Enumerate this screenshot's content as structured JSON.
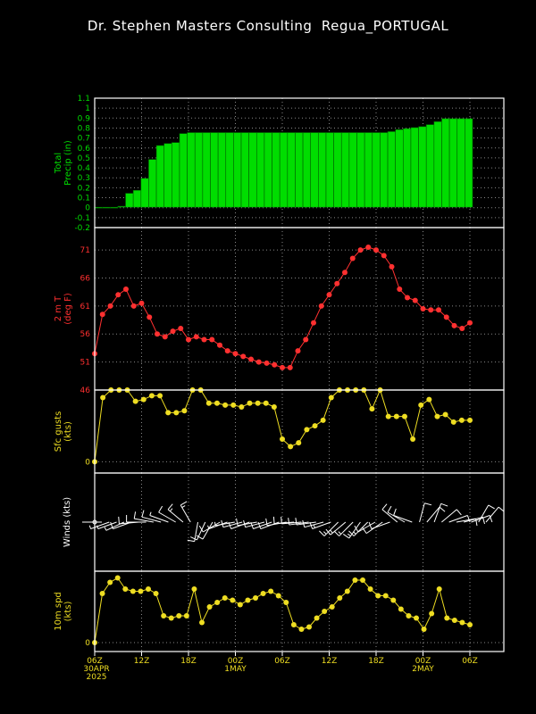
{
  "title": "Dr. Stephen Masters Consulting  Regua_PORTUGAL",
  "colors": {
    "precip": "#00dd00",
    "temp": "#ff3030",
    "gust": "#eedd22",
    "wind": "#ffffff",
    "spd": "#eedd22",
    "axis": "#ffffff"
  },
  "x_axis": {
    "tick_labels": [
      "06Z",
      "12Z",
      "18Z",
      "00Z",
      "06Z",
      "12Z",
      "18Z",
      "00Z",
      "06Z"
    ],
    "date_labels": [
      {
        "tick": 0,
        "lines": [
          "30APR",
          "2025"
        ]
      },
      {
        "tick": 3,
        "lines": [
          "1MAY"
        ]
      },
      {
        "tick": 7,
        "lines": [
          "2MAY"
        ]
      }
    ]
  },
  "chart_data": [
    {
      "type": "bar",
      "ylabel": [
        "Total",
        "Precip (in)"
      ],
      "ylim": [
        -0.2,
        1.1
      ],
      "yticks": [
        "1.1",
        "1",
        "0.9",
        "0.8",
        "0.7",
        "0.6",
        "0.5",
        "0.4",
        "0.3",
        "0.2",
        "0.1",
        "0",
        "-0.1",
        "-0.2"
      ],
      "values": [
        0,
        0,
        0,
        0.01,
        0.14,
        0.17,
        0.29,
        0.48,
        0.62,
        0.64,
        0.65,
        0.74,
        0.75,
        0.75,
        0.75,
        0.75,
        0.75,
        0.75,
        0.75,
        0.75,
        0.75,
        0.75,
        0.75,
        0.75,
        0.75,
        0.75,
        0.75,
        0.75,
        0.75,
        0.75,
        0.75,
        0.75,
        0.75,
        0.75,
        0.75,
        0.75,
        0.75,
        0.75,
        0.76,
        0.78,
        0.79,
        0.8,
        0.81,
        0.83,
        0.86,
        0.89,
        0.89,
        0.89,
        0.89
      ]
    },
    {
      "type": "line",
      "ylabel": [
        "2 m T",
        "(deg F)"
      ],
      "ylim": [
        46,
        75
      ],
      "yticks": [
        "71",
        "66",
        "61",
        "56",
        "51",
        "46"
      ],
      "values": [
        52.5,
        59.5,
        61,
        63,
        64,
        61,
        61.5,
        59,
        56,
        55.5,
        56.5,
        57,
        55,
        55.5,
        55,
        55,
        54,
        53,
        52.5,
        52,
        51.5,
        51,
        50.8,
        50.5,
        50,
        50,
        53,
        55,
        58,
        61,
        63,
        65,
        67,
        69.5,
        71,
        71.5,
        71,
        70,
        68,
        64,
        62.5,
        62,
        60.5,
        60.3,
        60.3,
        59,
        57.5,
        57,
        58
      ]
    },
    {
      "type": "line",
      "ylabel": [
        "Sfc gusts",
        "(kts)"
      ],
      "ylim": [
        -3,
        19
      ],
      "yticks": [
        "0"
      ],
      "values": [
        0,
        17,
        19,
        19,
        19,
        16,
        16.5,
        17.5,
        17.5,
        13,
        13,
        13.5,
        19,
        19,
        15.5,
        15.5,
        15,
        15,
        14.5,
        15.5,
        15.5,
        15.5,
        14.5,
        6,
        4,
        5,
        8.5,
        9.5,
        11,
        17,
        19,
        19,
        19,
        19,
        14,
        19,
        12,
        12,
        12,
        6,
        15,
        16.5,
        12,
        12.5,
        10.5,
        11,
        11
      ]
    },
    {
      "type": "barbs",
      "ylabel": [
        "Winds (kts)"
      ],
      "barbs": [
        {
          "dir": 270,
          "spd": 2
        },
        {
          "dir": 250,
          "spd": 5
        },
        {
          "dir": 250,
          "spd": 5
        },
        {
          "dir": 245,
          "spd": 7
        },
        {
          "dir": 250,
          "spd": 10
        },
        {
          "dir": 265,
          "spd": 10
        },
        {
          "dir": 270,
          "spd": 10
        },
        {
          "dir": 280,
          "spd": 10
        },
        {
          "dir": 285,
          "spd": 10
        },
        {
          "dir": 290,
          "spd": 8
        },
        {
          "dir": 300,
          "spd": 10
        },
        {
          "dir": 310,
          "spd": 15
        },
        {
          "dir": 330,
          "spd": 15
        },
        {
          "dir": 190,
          "spd": 10
        },
        {
          "dir": 205,
          "spd": 10
        },
        {
          "dir": 210,
          "spd": 10
        },
        {
          "dir": 240,
          "spd": 10
        },
        {
          "dir": 250,
          "spd": 8
        },
        {
          "dir": 260,
          "spd": 8
        },
        {
          "dir": 255,
          "spd": 10
        },
        {
          "dir": 250,
          "spd": 10
        },
        {
          "dir": 260,
          "spd": 10
        },
        {
          "dir": 255,
          "spd": 10
        },
        {
          "dir": 250,
          "spd": 10
        },
        {
          "dir": 250,
          "spd": 10
        },
        {
          "dir": 260,
          "spd": 10
        },
        {
          "dir": 265,
          "spd": 10
        },
        {
          "dir": 265,
          "spd": 10
        },
        {
          "dir": 262,
          "spd": 10
        },
        {
          "dir": 262,
          "spd": 10
        },
        {
          "dir": 255,
          "spd": 10
        },
        {
          "dir": 250,
          "spd": 15
        },
        {
          "dir": 225,
          "spd": 15
        },
        {
          "dir": 230,
          "spd": 15
        },
        {
          "dir": 225,
          "spd": 15
        },
        {
          "dir": 215,
          "spd": 15
        },
        {
          "dir": 225,
          "spd": 15
        },
        {
          "dir": 240,
          "spd": 10
        },
        {
          "dir": 235,
          "spd": 10
        },
        {
          "dir": 250,
          "spd": 10
        },
        {
          "dir": 310,
          "spd": 10
        },
        {
          "dir": 300,
          "spd": 10
        },
        {
          "dir": 290,
          "spd": 10
        },
        {
          "dir": 15,
          "spd": 10
        },
        {
          "dir": 40,
          "spd": 10
        },
        {
          "dir": 20,
          "spd": 10
        },
        {
          "dir": 50,
          "spd": 10
        },
        {
          "dir": 70,
          "spd": 10
        },
        {
          "dir": 80,
          "spd": 10
        },
        {
          "dir": 75,
          "spd": 10
        },
        {
          "dir": 70,
          "spd": 10
        },
        {
          "dir": 30,
          "spd": 10
        },
        {
          "dir": 40,
          "spd": 10
        }
      ]
    },
    {
      "type": "line",
      "ylabel": [
        "10m spd",
        "(kts)"
      ],
      "ylim": [
        -2,
        16
      ],
      "yticks": [
        "0"
      ],
      "values": [
        0,
        11,
        13.5,
        14.5,
        12,
        11.5,
        11.5,
        12,
        11,
        6,
        5.5,
        6,
        6,
        12,
        4.5,
        8,
        9,
        10,
        9.5,
        8.5,
        9.5,
        10,
        11,
        11.5,
        10.5,
        9,
        4,
        3,
        3.5,
        5.5,
        7,
        8,
        10,
        11.5,
        14,
        14,
        12,
        10.5,
        10.5,
        9.5,
        7.5,
        6,
        5.5,
        3,
        6.5,
        12,
        5.5,
        5,
        4.5,
        4
      ]
    }
  ]
}
